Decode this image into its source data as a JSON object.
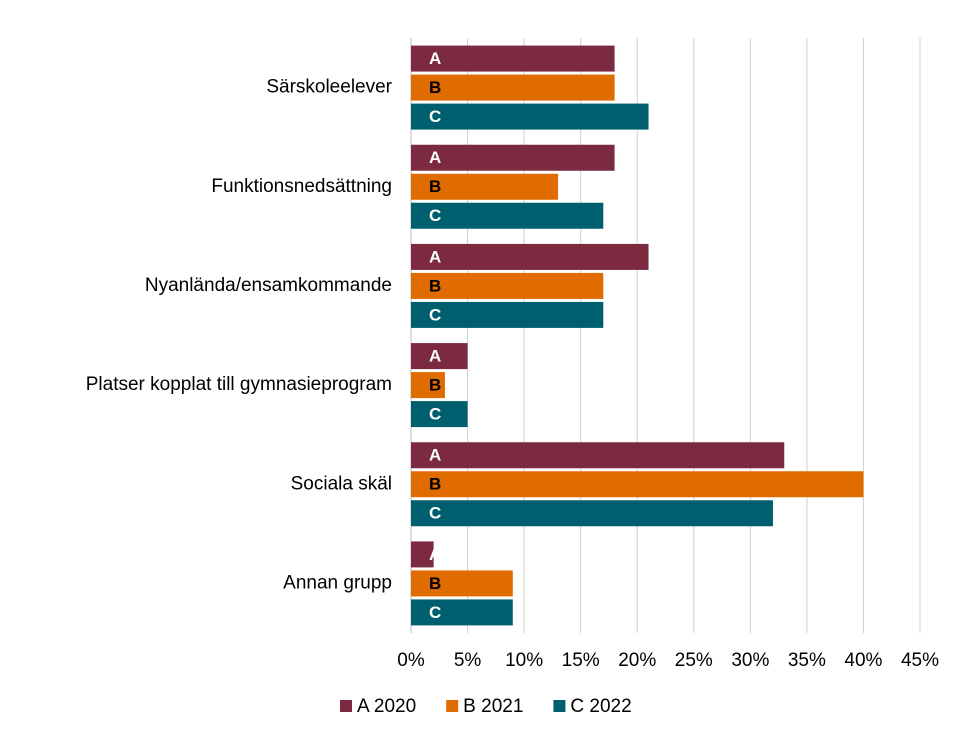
{
  "chart_data": {
    "type": "hbar",
    "categories": [
      "Särskoleelever",
      "Funktionsnedsättning",
      "Nyanlända/ensamkommande",
      "Platser kopplat till gymnasieprogram",
      "Sociala skäl",
      "Annan grupp"
    ],
    "series": [
      {
        "name": "A 2020",
        "label": "A",
        "color": "#7b2a3f",
        "label_color": "#ffffff",
        "values": [
          18,
          18,
          21,
          5,
          33,
          2
        ]
      },
      {
        "name": "B 2021",
        "label": "B",
        "color": "#e06c00",
        "label_color": "#000000",
        "values": [
          18,
          13,
          17,
          3,
          40,
          9
        ]
      },
      {
        "name": "C 2022",
        "label": "C",
        "color": "#005f6e",
        "label_color": "#ffffff",
        "values": [
          21,
          17,
          17,
          5,
          32,
          9
        ]
      }
    ],
    "xlim": [
      0,
      45
    ],
    "xticks": [
      {
        "value": 0,
        "label": "0%"
      },
      {
        "value": 5,
        "label": "5%"
      },
      {
        "value": 10,
        "label": "10%"
      },
      {
        "value": 15,
        "label": "15%"
      },
      {
        "value": 20,
        "label": "20%"
      },
      {
        "value": 25,
        "label": "25%"
      },
      {
        "value": 30,
        "label": "30%"
      },
      {
        "value": 35,
        "label": "35%"
      },
      {
        "value": 40,
        "label": "40%"
      },
      {
        "value": 45,
        "label": "45%"
      }
    ],
    "grid": true,
    "legend": "bottom"
  }
}
